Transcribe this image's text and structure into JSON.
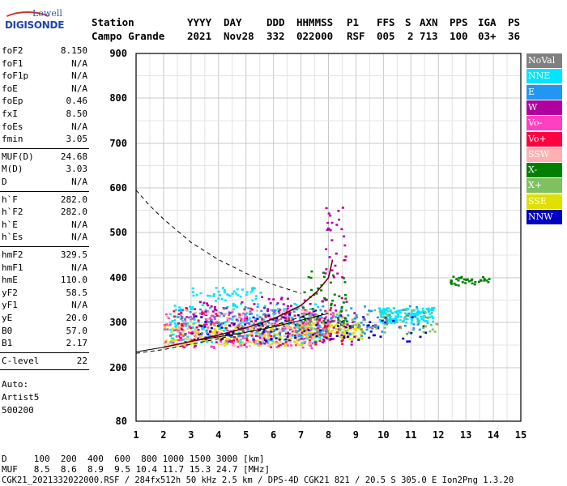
{
  "logo": {
    "top": "Lowell",
    "main": "DIGISONDE"
  },
  "header": {
    "labels": [
      "Station",
      "YYYY",
      "DAY",
      "DDD",
      "HHMMSS",
      "P1",
      "FFS",
      "S",
      "AXN",
      "PPS",
      "IGA",
      "PS"
    ],
    "values": [
      "Campo Grande",
      "2021",
      "Nov28",
      "332",
      "022000",
      "RSF",
      "005",
      "2",
      "713",
      "100",
      "03+",
      "36"
    ]
  },
  "params": {
    "group1": [
      {
        "k": "foF2",
        "v": "8.150"
      },
      {
        "k": "foF1",
        "v": "N/A"
      },
      {
        "k": "foF1p",
        "v": "N/A"
      },
      {
        "k": "foE",
        "v": "N/A"
      },
      {
        "k": "foEp",
        "v": "0.46"
      },
      {
        "k": "fxI",
        "v": "8.50"
      },
      {
        "k": "foEs",
        "v": "N/A"
      },
      {
        "k": "fmin",
        "v": "3.05"
      }
    ],
    "group2": [
      {
        "k": "MUF(D)",
        "v": "24.68"
      },
      {
        "k": "M(D)",
        "v": "3.03"
      },
      {
        "k": "D",
        "v": "N/A"
      }
    ],
    "group3": [
      {
        "k": "h`F",
        "v": "282.0"
      },
      {
        "k": "h`F2",
        "v": "282.0"
      },
      {
        "k": "h`E",
        "v": "N/A"
      },
      {
        "k": "h`Es",
        "v": "N/A"
      }
    ],
    "group4": [
      {
        "k": "hmF2",
        "v": "329.5"
      },
      {
        "k": "hmF1",
        "v": "N/A"
      },
      {
        "k": "hmE",
        "v": "110.0"
      },
      {
        "k": "yF2",
        "v": "58.5"
      },
      {
        "k": "yF1",
        "v": "N/A"
      },
      {
        "k": "yE",
        "v": "20.0"
      },
      {
        "k": "B0",
        "v": "57.0"
      },
      {
        "k": "B1",
        "v": "2.17"
      }
    ],
    "group5": [
      {
        "k": "C-level",
        "v": "22"
      }
    ],
    "auto": [
      "Auto:",
      "Artist5",
      "500200"
    ]
  },
  "legend": [
    {
      "label": "NoVal",
      "color": "#808080"
    },
    {
      "label": "NNE",
      "color": "#00e5ff"
    },
    {
      "label": "E",
      "color": "#2196f3"
    },
    {
      "label": "W",
      "color": "#b000a0"
    },
    {
      "label": "Vo-",
      "color": "#ff40c0"
    },
    {
      "label": "Vo+",
      "color": "#ff0040"
    },
    {
      "label": "SSW",
      "color": "#ffb0b0"
    },
    {
      "label": "X-",
      "color": "#008000"
    },
    {
      "label": "X+",
      "color": "#80c060"
    },
    {
      "label": "SSE",
      "color": "#e0e000"
    },
    {
      "label": "NNW",
      "color": "#0000c0"
    }
  ],
  "bottom": {
    "d_row": "D     100  200  400  600  800 1000 1500 3000 [km]",
    "muf_row": "MUF   8.5  8.6  8.9  9.5 10.4 11.7 15.3 24.7 [MHz]",
    "file_row": "CGK21_2021332022000.RSF / 284fx512h 50 kHz 2.5 km / DPS-4D CGK21 821 / 20.5 S 305.0 E Ion2Png 1.3.20"
  },
  "chart_data": {
    "type": "scatter",
    "x_ticks": [
      "1",
      "2",
      "3",
      "4",
      "5",
      "6",
      "7",
      "8",
      "9",
      "10",
      "11",
      "12",
      "13",
      "14",
      "15"
    ],
    "y_ticks": [
      "80",
      "200",
      "300",
      "400",
      "500",
      "600",
      "700",
      "800",
      "900"
    ],
    "xlim": [
      1,
      15
    ],
    "ylim": [
      80,
      900
    ],
    "profile_curve": {
      "x": [
        2.0,
        3.0,
        4.0,
        5.0,
        6.0,
        7.0,
        7.6,
        8.0,
        8.15
      ],
      "y": [
        245,
        258,
        272,
        288,
        308,
        338,
        370,
        400,
        440
      ]
    },
    "trace_curve": {
      "x": [
        1.0,
        2.0,
        3.0,
        4.0,
        5.0,
        6.0,
        7.0,
        8.0
      ],
      "y": [
        235,
        245,
        258,
        268,
        278,
        290,
        305,
        320
      ]
    },
    "dashed_muf": {
      "x": [
        1.0,
        1.5,
        2.0,
        3.0,
        4.0,
        5.0,
        6.0,
        7.0
      ],
      "y": [
        595,
        560,
        530,
        478,
        440,
        410,
        385,
        365
      ]
    },
    "dashed_low": {
      "x": [
        1.0,
        2.0,
        3.0,
        4.0,
        5.0,
        6.0,
        7.0,
        7.7
      ],
      "y": [
        232,
        240,
        252,
        264,
        278,
        293,
        312,
        330
      ]
    },
    "point_clusters": [
      {
        "series": "SSE",
        "x": [
          2.0,
          7.5
        ],
        "y": [
          250,
          300
        ],
        "n": 260
      },
      {
        "series": "SSE",
        "x": [
          7.0,
          9.2
        ],
        "y": [
          265,
          300
        ],
        "n": 140
      },
      {
        "series": "NNE",
        "x": [
          2.2,
          7.8
        ],
        "y": [
          255,
          345
        ],
        "n": 220
      },
      {
        "series": "NNE",
        "x": [
          9.8,
          11.8
        ],
        "y": [
          300,
          335
        ],
        "n": 150
      },
      {
        "series": "Vo-",
        "x": [
          2.0,
          8.2
        ],
        "y": [
          245,
          330
        ],
        "n": 180
      },
      {
        "series": "W",
        "x": [
          2.5,
          9.0
        ],
        "y": [
          250,
          360
        ],
        "n": 150
      },
      {
        "series": "Vo+",
        "x": [
          2.3,
          8.5
        ],
        "y": [
          245,
          335
        ],
        "n": 110
      },
      {
        "series": "NNW",
        "x": [
          3.0,
          11.5
        ],
        "y": [
          260,
          320
        ],
        "n": 110
      },
      {
        "series": "SSW",
        "x": [
          2.0,
          7.5
        ],
        "y": [
          250,
          330
        ],
        "n": 100
      },
      {
        "series": "E",
        "x": [
          2.5,
          11.5
        ],
        "y": [
          270,
          340
        ],
        "n": 110
      },
      {
        "series": "X-",
        "x": [
          7.0,
          8.7
        ],
        "y": [
          300,
          420
        ],
        "n": 45
      },
      {
        "series": "X-",
        "x": [
          12.4,
          13.9
        ],
        "y": [
          385,
          405
        ],
        "n": 35
      },
      {
        "series": "X+",
        "x": [
          7.0,
          12.0
        ],
        "y": [
          280,
          330
        ],
        "n": 60
      },
      {
        "series": "NoVal",
        "x": [
          2.0,
          11.0
        ],
        "y": [
          270,
          320
        ],
        "n": 40
      },
      {
        "series": "NNE",
        "x": [
          3.0,
          5.5
        ],
        "y": [
          350,
          380
        ],
        "n": 40
      },
      {
        "series": "W",
        "x": [
          7.8,
          8.6
        ],
        "y": [
          400,
          560
        ],
        "n": 30
      }
    ]
  }
}
